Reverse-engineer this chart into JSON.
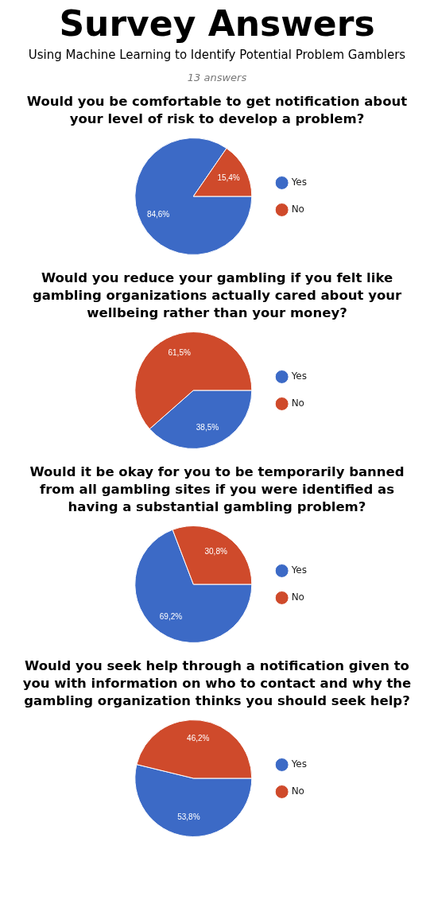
{
  "chart_data": [
    {
      "type": "other",
      "title": "Survey Answers",
      "subtitle": "Using Machine Learning to Identify Potential Problem Gamblers",
      "annotations": [
        "13 answers"
      ]
    },
    {
      "type": "pie",
      "title": "Would you be comfortable to get notification about your level of risk to develop a problem?",
      "categories": [
        "Yes",
        "No"
      ],
      "values": [
        84.6,
        15.4
      ],
      "colors": [
        "#3c6ac6",
        "#cf4a2b"
      ],
      "value_labels": [
        "84,6%",
        "15,4%"
      ],
      "legend": "right"
    },
    {
      "type": "pie",
      "title": "Would you reduce your gambling if you felt like gambling organizations actually cared about your wellbeing rather than your money?",
      "categories": [
        "Yes",
        "No"
      ],
      "values": [
        38.5,
        61.5
      ],
      "colors": [
        "#3c6ac6",
        "#cf4a2b"
      ],
      "value_labels": [
        "38,5%",
        "61,5%"
      ],
      "legend": "right"
    },
    {
      "type": "pie",
      "title": "Would it be okay for you to be temporarily banned from all gambling sites if you were identified as having a substantial gambling problem?",
      "categories": [
        "Yes",
        "No"
      ],
      "values": [
        69.2,
        30.8
      ],
      "colors": [
        "#3c6ac6",
        "#cf4a2b"
      ],
      "value_labels": [
        "69,2%",
        "30,8%"
      ],
      "legend": "right"
    },
    {
      "type": "pie",
      "title": "Would you seek help through a notification given to you with information on who to contact and why the gambling organization thinks you should seek help?",
      "categories": [
        "Yes",
        "No"
      ],
      "values": [
        53.8,
        46.2
      ],
      "colors": [
        "#3c6ac6",
        "#cf4a2b"
      ],
      "value_labels": [
        "53,8%",
        "46,2%"
      ],
      "legend": "right"
    }
  ]
}
